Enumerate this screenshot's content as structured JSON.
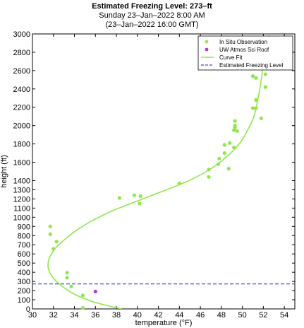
{
  "header": {
    "title": "Estimated Freezing Level: 273–ft",
    "subtitle": "Sunday 23–Jan–2022  8:00 AM",
    "subtitle2": "(23–Jan–2022 16:00 GMT)"
  },
  "colors": {
    "observation": "#8ee84a",
    "roof": "#b23ad6",
    "fit": "#8ee84a",
    "freezing": "#3b4bd6"
  },
  "chart_data": {
    "type": "scatter",
    "title": "Estimated Freezing Level: 273–ft",
    "xlabel": "temperature (°F)",
    "ylabel": "height (ft)",
    "xlim": [
      30,
      55
    ],
    "ylim": [
      0,
      3000
    ],
    "xticks": [
      "30",
      "32",
      "34",
      "36",
      "38",
      "40",
      "42",
      "44",
      "46",
      "48",
      "50",
      "52",
      "54"
    ],
    "yticks": [
      "0",
      "100",
      "200",
      "300",
      "400",
      "500",
      "600",
      "700",
      "800",
      "900",
      "1000",
      "1100",
      "1200",
      "1300",
      "1400",
      "1600",
      "1800",
      "2000",
      "2200",
      "2400",
      "2600",
      "2800",
      "3000"
    ],
    "legend_position": "top-right",
    "legend": [
      "In Situ Observation",
      "UW Atmos Sci Roof",
      "Curve Fit",
      "Estimated Freezing Level"
    ],
    "series": [
      {
        "name": "In Situ Observation",
        "points": [
          [
            31.7,
            900
          ],
          [
            31.7,
            815
          ],
          [
            32.0,
            655
          ],
          [
            32.3,
            735
          ],
          [
            33.3,
            395
          ],
          [
            33.3,
            340
          ],
          [
            33.7,
            245
          ],
          [
            34.8,
            148
          ],
          [
            34.8,
            10
          ],
          [
            38.3,
            1210
          ],
          [
            39.7,
            1240
          ],
          [
            40.2,
            1150
          ],
          [
            40.3,
            1230
          ],
          [
            44.0,
            1370
          ],
          [
            46.8,
            1440
          ],
          [
            46.8,
            1520
          ],
          [
            47.7,
            1580
          ],
          [
            47.8,
            1640
          ],
          [
            48.3,
            1700
          ],
          [
            48.3,
            1790
          ],
          [
            48.7,
            1530
          ],
          [
            48.8,
            1810
          ],
          [
            49.2,
            1760
          ],
          [
            49.2,
            1950
          ],
          [
            49.3,
            2000
          ],
          [
            49.3,
            1980
          ],
          [
            49.3,
            2050
          ],
          [
            49.5,
            1940
          ],
          [
            51.0,
            2190
          ],
          [
            51.0,
            2540
          ],
          [
            51.3,
            2520
          ],
          [
            51.3,
            2190
          ],
          [
            51.3,
            2280
          ],
          [
            51.5,
            2650
          ],
          [
            51.8,
            2080
          ],
          [
            52.0,
            2700
          ],
          [
            52.2,
            2560
          ],
          [
            52.2,
            2420
          ]
        ]
      },
      {
        "name": "UW Atmos Sci Roof",
        "points": [
          [
            36.0,
            190
          ]
        ]
      },
      {
        "name": "Curve Fit",
        "curve": [
          [
            38.5,
            0
          ],
          [
            36.0,
            70
          ],
          [
            34.2,
            150
          ],
          [
            32.8,
            250
          ],
          [
            31.9,
            350
          ],
          [
            31.5,
            450
          ],
          [
            31.6,
            550
          ],
          [
            32.1,
            650
          ],
          [
            33.0,
            750
          ],
          [
            34.1,
            850
          ],
          [
            35.5,
            950
          ],
          [
            37.4,
            1060
          ],
          [
            39.6,
            1160
          ],
          [
            42.1,
            1270
          ],
          [
            44.5,
            1380
          ],
          [
            46.6,
            1500
          ],
          [
            48.4,
            1650
          ],
          [
            49.7,
            1800
          ],
          [
            50.5,
            1950
          ],
          [
            51.1,
            2100
          ],
          [
            51.5,
            2300
          ],
          [
            51.8,
            2500
          ],
          [
            52.0,
            2700
          ],
          [
            52.3,
            2880
          ],
          [
            52.6,
            3000
          ]
        ]
      },
      {
        "name": "Estimated Freezing Level",
        "y": 273
      }
    ]
  }
}
